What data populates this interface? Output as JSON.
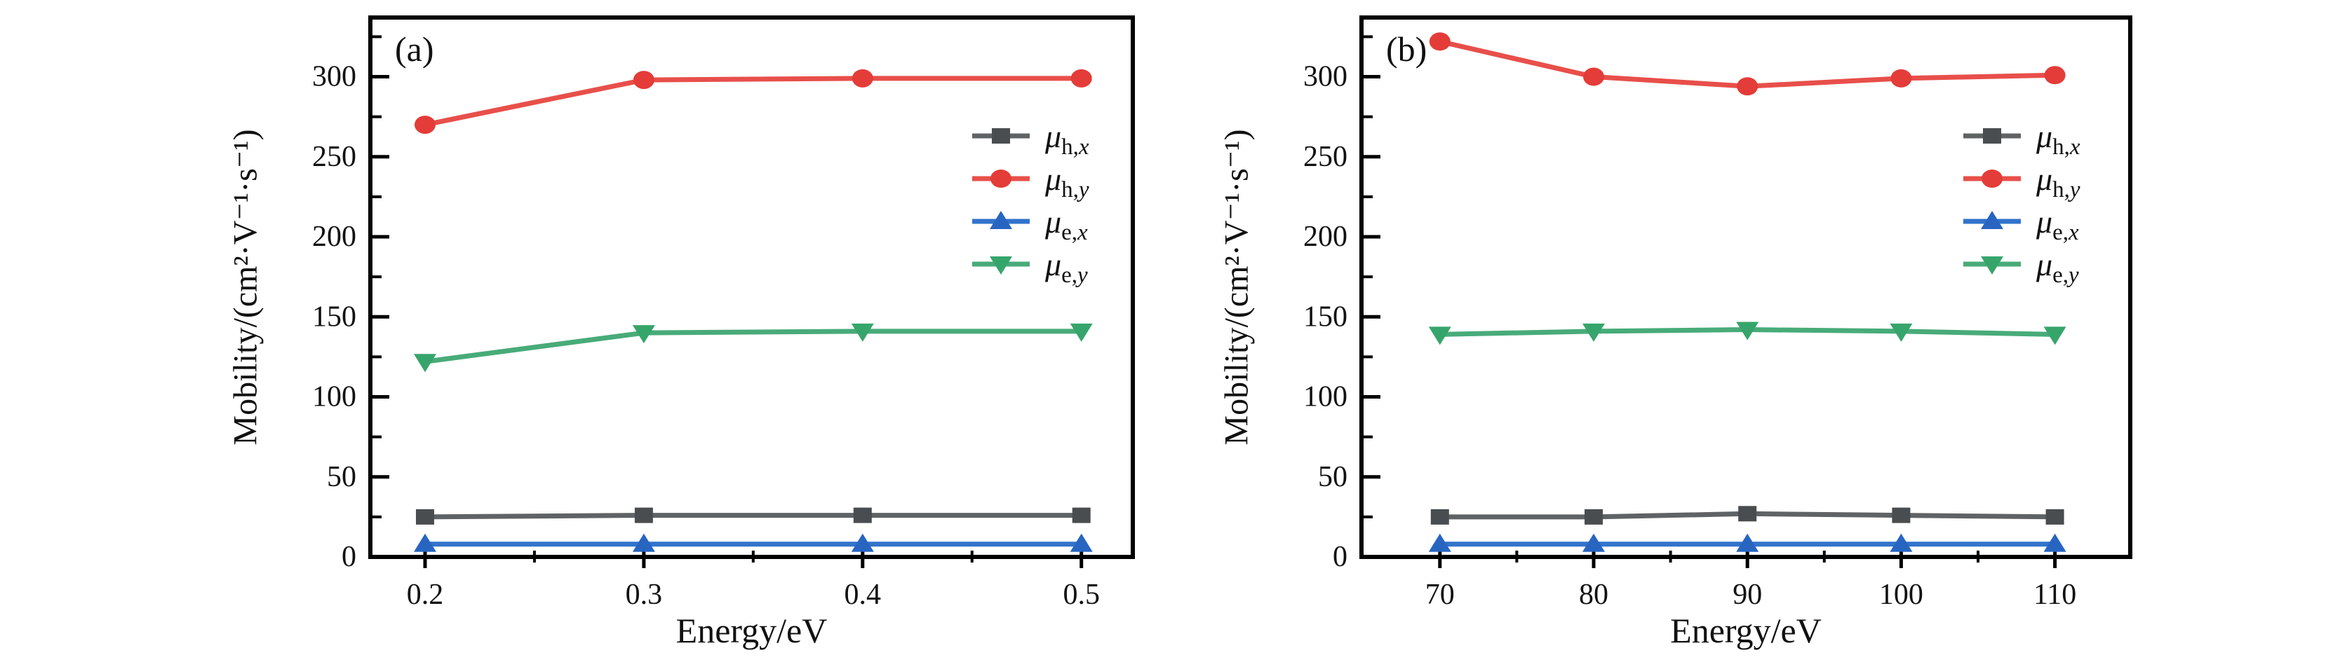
{
  "figure": {
    "background": "#ffffff",
    "axis_color": "#000000",
    "text_color": "#111111"
  },
  "chart_data": {
    "type": "line",
    "panels": [
      {
        "id": "a",
        "panel_label": "(a)",
        "xlabel": "Energy/eV",
        "ylabel": "Mobility/(cm²·V⁻¹·s⁻¹)",
        "xlim": [
          0.175,
          0.5235
        ],
        "ylim": [
          0,
          337
        ],
        "x_tick_values": [
          0.2,
          0.3,
          0.4,
          0.5
        ],
        "x_tick_labels": [
          "0.2",
          "0.3",
          "0.4",
          "0.5"
        ],
        "x_minor_ticks": [
          0.25,
          0.35,
          0.45
        ],
        "y_tick_values": [
          0,
          50,
          100,
          150,
          200,
          250,
          300
        ],
        "y_tick_labels": [
          "0",
          "50",
          "100",
          "150",
          "200",
          "250",
          "300"
        ],
        "y_minor_ticks": [
          25,
          75,
          125,
          175,
          225,
          275,
          325
        ],
        "grid": false,
        "legend_position": "upper-right-inside",
        "frame": {
          "left": 528,
          "right": 1615,
          "top": 25,
          "bottom": 795
        },
        "legend_pos": {
          "x": 1386,
          "y": 194,
          "step": 61
        },
        "series": [
          {
            "name": "mu-h-x",
            "marker": "square",
            "color": "#4a4d4f",
            "line_color": "#606365",
            "label": {
              "symbol": "μ",
              "subscript_roman": "h,",
              "subscript_italic": "x"
            },
            "x": [
              0.2,
              0.3,
              0.4,
              0.5
            ],
            "y": [
              25,
              26,
              26,
              26
            ]
          },
          {
            "name": "mu-h-y",
            "marker": "circle",
            "color": "#e43c38",
            "line_color": "#e84f4a",
            "label": {
              "symbol": "μ",
              "subscript_roman": "h,",
              "subscript_italic": "y"
            },
            "x": [
              0.2,
              0.3,
              0.4,
              0.5
            ],
            "y": [
              270,
              298,
              299,
              299
            ]
          },
          {
            "name": "mu-e-x",
            "marker": "triangle-up",
            "color": "#2765c1",
            "line_color": "#3273cb",
            "label": {
              "symbol": "μ",
              "subscript_roman": "e,",
              "subscript_italic": "x"
            },
            "x": [
              0.2,
              0.3,
              0.4,
              0.5
            ],
            "y": [
              8,
              8,
              8,
              8
            ]
          },
          {
            "name": "mu-e-y",
            "marker": "triangle-down",
            "color": "#36a56b",
            "line_color": "#48ab79",
            "label": {
              "symbol": "μ",
              "subscript_roman": "e,",
              "subscript_italic": "y"
            },
            "x": [
              0.2,
              0.3,
              0.4,
              0.5
            ],
            "y": [
              122,
              140,
              141,
              141
            ]
          }
        ]
      },
      {
        "id": "b",
        "panel_label": "(b)",
        "xlabel": "Energy/eV",
        "ylabel": "Mobility/(cm²·V⁻¹·s⁻¹)",
        "xlim": [
          64.9,
          114.9
        ],
        "ylim": [
          0,
          337
        ],
        "x_tick_values": [
          70,
          80,
          90,
          100,
          110
        ],
        "x_tick_labels": [
          "70",
          "80",
          "90",
          "100",
          "110"
        ],
        "x_minor_ticks": [
          75,
          85,
          95,
          105
        ],
        "y_tick_values": [
          0,
          50,
          100,
          150,
          200,
          250,
          300
        ],
        "y_tick_labels": [
          "0",
          "50",
          "100",
          "150",
          "200",
          "250",
          "300"
        ],
        "y_minor_ticks": [
          25,
          75,
          125,
          175,
          225,
          275,
          325
        ],
        "grid": false,
        "legend_position": "upper-right-inside",
        "frame": {
          "left": 1941,
          "right": 3037,
          "top": 25,
          "bottom": 795
        },
        "legend_pos": {
          "x": 2799,
          "y": 194,
          "step": 61
        },
        "series": [
          {
            "name": "mu-h-x",
            "marker": "square",
            "color": "#4a4d4f",
            "line_color": "#606365",
            "label": {
              "symbol": "μ",
              "subscript_roman": "h,",
              "subscript_italic": "x"
            },
            "x": [
              70,
              80,
              90,
              100,
              110
            ],
            "y": [
              25,
              25,
              27,
              26,
              25
            ]
          },
          {
            "name": "mu-h-y",
            "marker": "circle",
            "color": "#e43c38",
            "line_color": "#e84f4a",
            "label": {
              "symbol": "μ",
              "subscript_roman": "h,",
              "subscript_italic": "y"
            },
            "x": [
              70,
              80,
              90,
              100,
              110
            ],
            "y": [
              322,
              300,
              294,
              299,
              301
            ]
          },
          {
            "name": "mu-e-x",
            "marker": "triangle-up",
            "color": "#2765c1",
            "line_color": "#3273cb",
            "label": {
              "symbol": "μ",
              "subscript_roman": "e,",
              "subscript_italic": "x"
            },
            "x": [
              70,
              80,
              90,
              100,
              110
            ],
            "y": [
              8,
              8,
              8,
              8,
              8
            ]
          },
          {
            "name": "mu-e-y",
            "marker": "triangle-down",
            "color": "#36a56b",
            "line_color": "#48ab79",
            "label": {
              "symbol": "μ",
              "subscript_roman": "e,",
              "subscript_italic": "y"
            },
            "x": [
              70,
              80,
              90,
              100,
              110
            ],
            "y": [
              139,
              141,
              142,
              141,
              139
            ]
          }
        ]
      }
    ]
  }
}
